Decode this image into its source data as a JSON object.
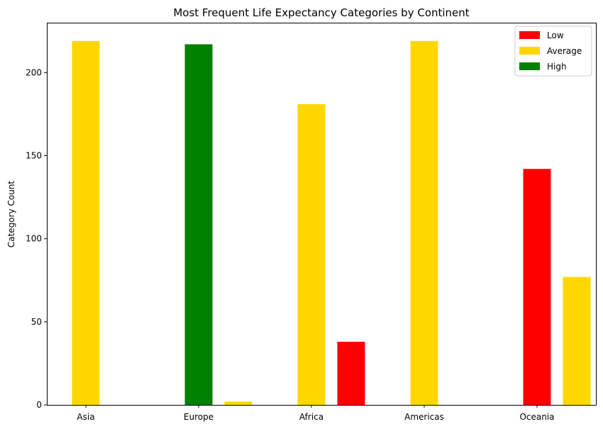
{
  "chart_data": {
    "type": "bar",
    "title": "Most Frequent Life Expectancy Categories by Continent",
    "xlabel": "",
    "ylabel": "Category Count",
    "ylim": [
      0,
      230
    ],
    "yticks": [
      0,
      50,
      100,
      150,
      200
    ],
    "categories": [
      "Asia",
      "Europe",
      "Africa",
      "Americas",
      "Oceania"
    ],
    "legend": {
      "position": "top-right",
      "entries": [
        {
          "label": "Low",
          "color": "#ff0000"
        },
        {
          "label": "Average",
          "color": "#ffd700"
        },
        {
          "label": "High",
          "color": "#008000"
        }
      ]
    },
    "bars": [
      {
        "category": "Asia",
        "slot": 0,
        "category_label": "Average",
        "value": 219,
        "color": "#ffd700"
      },
      {
        "category": "Europe",
        "slot": 0,
        "category_label": "High",
        "value": 217,
        "color": "#008000"
      },
      {
        "category": "Europe",
        "slot": 1,
        "category_label": "Average",
        "value": 2,
        "color": "#ffd700"
      },
      {
        "category": "Africa",
        "slot": 0,
        "category_label": "Average",
        "value": 181,
        "color": "#ffd700"
      },
      {
        "category": "Africa",
        "slot": 1,
        "category_label": "Low",
        "value": 38,
        "color": "#ff0000"
      },
      {
        "category": "Americas",
        "slot": 0,
        "category_label": "Average",
        "value": 219,
        "color": "#ffd700"
      },
      {
        "category": "Oceania",
        "slot": 0,
        "category_label": "Low",
        "value": 142,
        "color": "#ff0000"
      },
      {
        "category": "Oceania",
        "slot": 1,
        "category_label": "Average",
        "value": 77,
        "color": "#ffd700"
      }
    ]
  }
}
